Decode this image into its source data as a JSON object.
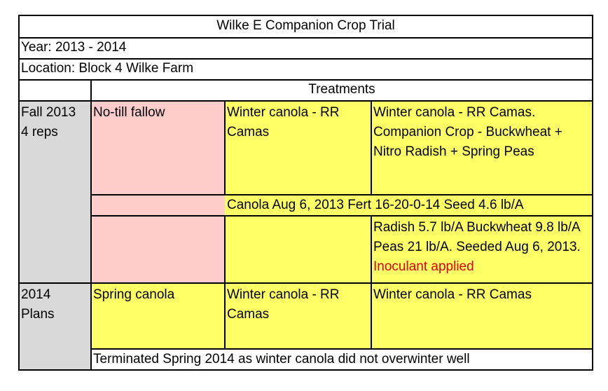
{
  "title": "Wilke E Companion Crop Trial",
  "year": "Year: 2013 - 2014",
  "location": "Location: Block 4 Wilke Farm",
  "treatments_header": "Treatments",
  "fall": {
    "label_line1": "Fall 2013",
    "label_line2": "4 reps",
    "col1": "No-till fallow",
    "col2": "Winter canola -  RR Camas",
    "col3": "Winter canola -  RR Camas. Companion Crop - Buckwheat + Nitro Radish + Spring Peas",
    "canola_row": "Canola Aug 6, 2013 Fert 16-20-0-14 Seed 4.6 lb/A",
    "seed_note": "Radish 5.7 lb/A Buckwheat 9.8 lb/A  Peas 21 lb/A. Seeded Aug 6, 2013.",
    "seed_note_red": "Inoculant applied"
  },
  "plans": {
    "label_line1": "2014",
    "label_line2": "Plans",
    "col1": "Spring canola",
    "col2": "Winter canola -  RR Camas",
    "col3": "Winter canola -  RR Camas",
    "terminated": "Terminated Spring 2014 as winter canola did not overwinter well"
  }
}
